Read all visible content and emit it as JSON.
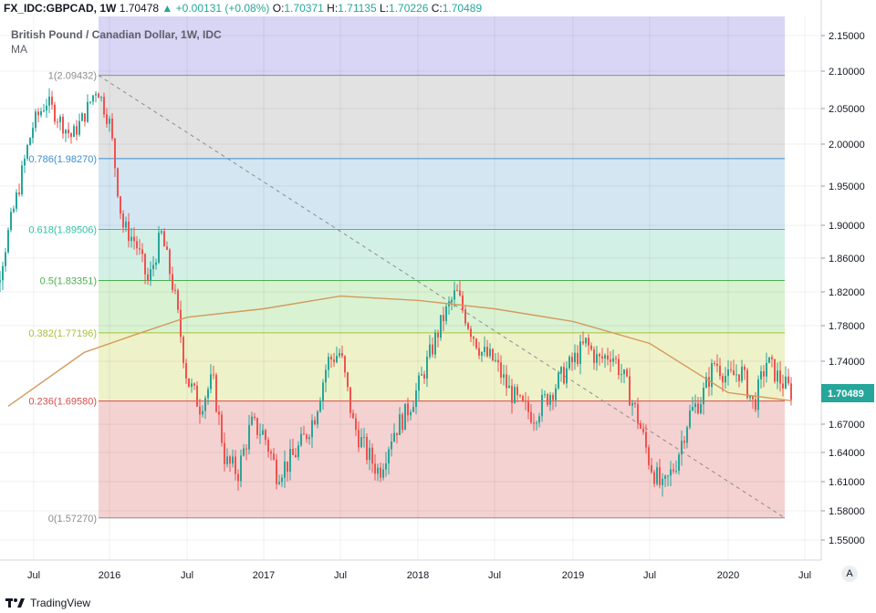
{
  "header": {
    "symbol": "FX_IDC:GBPCAD, 1W",
    "last": "1.70478",
    "change": "+0.00131 (+0.08%)",
    "o_label": "O:",
    "o": "1.70371",
    "h_label": "H:",
    "h": "1.71135",
    "l_label": "L:",
    "l": "1.70226",
    "c_label": "C:",
    "c": "1.70489"
  },
  "title": "British Pound / Canadian Dollar, 1W, IDC",
  "indicator": "MA",
  "brand": "TradingView",
  "auto_button": "A",
  "colors": {
    "up": "#26a69a",
    "down": "#ef5350",
    "ma": "#d49a5d",
    "price_tag": "#26a69a"
  },
  "chart_data": {
    "type": "candlestick",
    "title": "British Pound / Canadian Dollar, 1W, IDC",
    "x_ticks": [
      "Jul",
      "2016",
      "Jul",
      "2017",
      "Jul",
      "2018",
      "Jul",
      "2019",
      "Jul",
      "2020",
      "Jul"
    ],
    "y_ticks": [
      "2.15000",
      "2.10000",
      "2.05000",
      "2.00000",
      "1.95000",
      "1.90000",
      "1.86000",
      "1.82000",
      "1.78000",
      "1.74000",
      "1.70489",
      "1.67000",
      "1.64000",
      "1.61000",
      "1.58000",
      "1.55000"
    ],
    "ylim": [
      1.535,
      2.17
    ],
    "last_price": "1.70489",
    "fibonacci": [
      {
        "label": "1(2.09432)",
        "level": 2.09432
      },
      {
        "label": "0.786(1.98270)",
        "level": 1.9827
      },
      {
        "label": "0.618(1.89506)",
        "level": 1.89506
      },
      {
        "label": "0.5(1.83351)",
        "level": 1.83351
      },
      {
        "label": "0.382(1.77196)",
        "level": 1.77196
      },
      {
        "label": "0.236(1.69580)",
        "level": 1.6958
      },
      {
        "label": "0(1.57270)",
        "level": 1.5727
      }
    ],
    "candle_series": [
      {
        "t": "2015-05",
        "v": 1.89
      },
      {
        "t": "2015-07",
        "v": 2.03
      },
      {
        "t": "2015-08",
        "v": 2.06
      },
      {
        "t": "2015-10",
        "v": 2.01
      },
      {
        "t": "2015-11",
        "v": 2.04
      },
      {
        "t": "2015-12",
        "v": 2.08
      },
      {
        "t": "2016-01",
        "v": 2.03
      },
      {
        "t": "2016-02",
        "v": 1.9
      },
      {
        "t": "2016-03",
        "v": 1.88
      },
      {
        "t": "2016-04",
        "v": 1.83
      },
      {
        "t": "2016-05",
        "v": 1.89
      },
      {
        "t": "2016-06",
        "v": 1.82
      },
      {
        "t": "2016-07",
        "v": 1.72
      },
      {
        "t": "2016-08",
        "v": 1.69
      },
      {
        "t": "2016-09",
        "v": 1.72
      },
      {
        "t": "2016-10",
        "v": 1.63
      },
      {
        "t": "2016-11",
        "v": 1.62
      },
      {
        "t": "2016-12",
        "v": 1.67
      },
      {
        "t": "2017-01",
        "v": 1.66
      },
      {
        "t": "2017-02",
        "v": 1.62
      },
      {
        "t": "2017-03",
        "v": 1.63
      },
      {
        "t": "2017-04",
        "v": 1.65
      },
      {
        "t": "2017-05",
        "v": 1.68
      },
      {
        "t": "2017-06",
        "v": 1.74
      },
      {
        "t": "2017-07",
        "v": 1.75
      },
      {
        "t": "2017-08",
        "v": 1.67
      },
      {
        "t": "2017-09",
        "v": 1.64
      },
      {
        "t": "2017-10",
        "v": 1.62
      },
      {
        "t": "2017-11",
        "v": 1.66
      },
      {
        "t": "2017-12",
        "v": 1.68
      },
      {
        "t": "2018-01",
        "v": 1.71
      },
      {
        "t": "2018-02",
        "v": 1.75
      },
      {
        "t": "2018-03",
        "v": 1.79
      },
      {
        "t": "2018-04",
        "v": 1.82
      },
      {
        "t": "2018-05",
        "v": 1.78
      },
      {
        "t": "2018-06",
        "v": 1.75
      },
      {
        "t": "2018-07",
        "v": 1.74
      },
      {
        "t": "2018-08",
        "v": 1.71
      },
      {
        "t": "2018-09",
        "v": 1.69
      },
      {
        "t": "2018-10",
        "v": 1.68
      },
      {
        "t": "2018-11",
        "v": 1.7
      },
      {
        "t": "2018-12",
        "v": 1.72
      },
      {
        "t": "2019-01",
        "v": 1.74
      },
      {
        "t": "2019-02",
        "v": 1.76
      },
      {
        "t": "2019-03",
        "v": 1.74
      },
      {
        "t": "2019-04",
        "v": 1.75
      },
      {
        "t": "2019-05",
        "v": 1.72
      },
      {
        "t": "2019-06",
        "v": 1.68
      },
      {
        "t": "2019-07",
        "v": 1.63
      },
      {
        "t": "2019-08",
        "v": 1.6
      },
      {
        "t": "2019-09",
        "v": 1.63
      },
      {
        "t": "2019-10",
        "v": 1.68
      },
      {
        "t": "2019-11",
        "v": 1.7
      },
      {
        "t": "2019-12",
        "v": 1.74
      },
      {
        "t": "2020-01",
        "v": 1.72
      },
      {
        "t": "2020-02",
        "v": 1.73
      },
      {
        "t": "2020-03",
        "v": 1.69
      },
      {
        "t": "2020-04",
        "v": 1.74
      },
      {
        "t": "2020-05",
        "v": 1.72
      },
      {
        "t": "2020-06",
        "v": 1.705
      }
    ],
    "moving_average": [
      {
        "t": "2015-05",
        "v": 1.69
      },
      {
        "t": "2015-11",
        "v": 1.75
      },
      {
        "t": "2016-03",
        "v": 1.77
      },
      {
        "t": "2016-07",
        "v": 1.79
      },
      {
        "t": "2017-01",
        "v": 1.8
      },
      {
        "t": "2017-07",
        "v": 1.815
      },
      {
        "t": "2018-01",
        "v": 1.81
      },
      {
        "t": "2018-07",
        "v": 1.8
      },
      {
        "t": "2019-01",
        "v": 1.785
      },
      {
        "t": "2019-07",
        "v": 1.76
      },
      {
        "t": "2020-01",
        "v": 1.705
      },
      {
        "t": "2020-06",
        "v": 1.696
      }
    ]
  }
}
